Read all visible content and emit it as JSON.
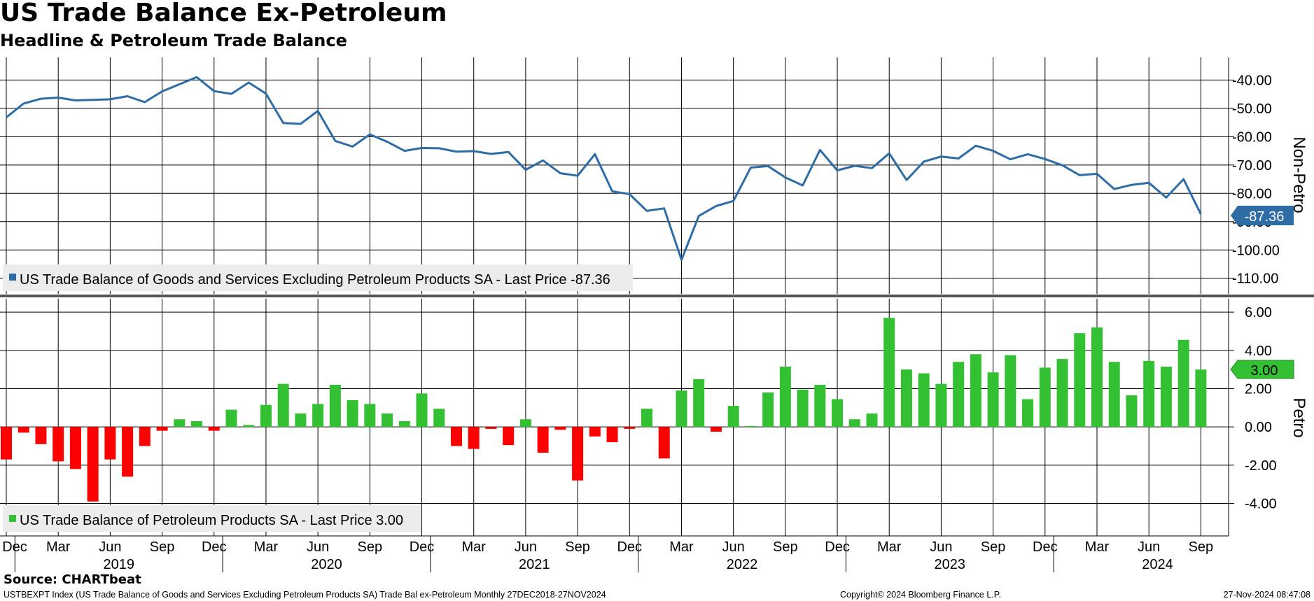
{
  "title": "US Trade Balance Ex-Petroleum",
  "subtitle": "Headline & Petroleum Trade Balance",
  "source": "Source: CHARTbeat",
  "footer": {
    "description": "USTBEXPT Index (US Trade Balance of Goods and Services Excluding Petroleum Products SA) Trade Bal ex-Petroleum  Monthly 27DEC2018-27NOV2024",
    "copyright": "Copyright© 2024 Bloomberg Finance L.P.",
    "timestamp": "27-Nov-2024 08:47:08"
  },
  "colors": {
    "line": "#2e6ca6",
    "bar_positive": "#33c033",
    "bar_negative": "#ff0000",
    "grid": "#000000",
    "divider": "#555555"
  },
  "chart_data": [
    {
      "type": "line",
      "axis_label": "Non-Petro",
      "legend": "US Trade Balance of Goods and Services Excluding Petroleum Products SA - Last Price -87.36",
      "last_value_label": "-87.36",
      "ylim": [
        -115.5,
        -32
      ],
      "y_ticks": [
        -40,
        -50,
        -60,
        -70,
        -80,
        -90,
        -100,
        -110
      ],
      "y_tick_labels": [
        "-40.00",
        "-50.00",
        "-60.00",
        "-70.00",
        "-80.00",
        "-90.00",
        "-100.00",
        "-110.00"
      ],
      "series": [
        {
          "name": "US Trade Balance of Goods and Services Excluding Petroleum Products SA",
          "values": [
            -53.2,
            -48.3,
            -46.6,
            -46.2,
            -47.2,
            -47.0,
            -46.8,
            -45.7,
            -47.8,
            -44.0,
            -41.5,
            -39.0,
            -43.9,
            -44.9,
            -40.9,
            -44.8,
            -55.2,
            -55.5,
            -50.9,
            -61.5,
            -63.5,
            -59.2,
            -61.8,
            -65.0,
            -64.0,
            -64.1,
            -65.3,
            -65.1,
            -66.1,
            -65.4,
            -71.7,
            -68.4,
            -72.9,
            -73.8,
            -66.2,
            -79.3,
            -80.3,
            -86.2,
            -85.3,
            -103.5,
            -88.0,
            -84.5,
            -82.7,
            -70.9,
            -70.4,
            -74.4,
            -77.2,
            -64.7,
            -71.9,
            -70.3,
            -71.1,
            -65.9,
            -75.3,
            -68.8,
            -67.0,
            -67.7,
            -63.2,
            -65.0,
            -68.0,
            -66.2,
            -67.9,
            -70.1,
            -73.6,
            -73.1,
            -78.5,
            -77.0,
            -76.3,
            -81.5,
            -75.0,
            -87.36
          ]
        }
      ]
    },
    {
      "type": "bar",
      "axis_label": "Petro",
      "legend": "US Trade Balance of Petroleum Products SA - Last Price 3.00",
      "last_value_label": "3.00",
      "ylim": [
        -5.7,
        6.7
      ],
      "y_ticks": [
        6,
        4,
        2,
        0,
        -2,
        -4
      ],
      "y_tick_labels": [
        "6.00",
        "4.00",
        "2.00",
        "0.00",
        "-2.00",
        "-4.00"
      ],
      "series": [
        {
          "name": "US Trade Balance of Petroleum Products SA",
          "values": [
            -1.7,
            -0.3,
            -0.9,
            -1.8,
            -2.2,
            -3.9,
            -1.7,
            -2.6,
            -1.0,
            -0.2,
            0.4,
            0.3,
            -0.2,
            0.9,
            0.1,
            1.15,
            2.25,
            0.7,
            1.2,
            2.2,
            1.4,
            1.2,
            0.7,
            0.3,
            1.75,
            0.95,
            -1.0,
            -1.15,
            -0.1,
            -0.95,
            0.4,
            -1.35,
            -0.15,
            -2.8,
            -0.5,
            -0.8,
            -0.1,
            0.95,
            -1.65,
            1.9,
            2.5,
            -0.25,
            1.1,
            0.05,
            1.8,
            3.15,
            1.95,
            2.2,
            1.45,
            0.4,
            0.7,
            5.7,
            3.0,
            2.8,
            2.25,
            3.4,
            3.8,
            2.85,
            3.75,
            1.45,
            3.1,
            3.55,
            4.9,
            5.2,
            3.4,
            1.65,
            3.45,
            3.15,
            4.55,
            3.0
          ]
        }
      ]
    }
  ],
  "x_axis": {
    "start": "Dec 2018",
    "month_labels": [
      "Dec",
      "Mar",
      "Jun",
      "Sep",
      "Dec",
      "Mar",
      "Jun",
      "Sep",
      "Dec",
      "Mar",
      "Jun",
      "Sep",
      "Dec",
      "Mar",
      "Jun",
      "Sep",
      "Dec",
      "Mar",
      "Jun",
      "Sep",
      "Dec",
      "Mar",
      "Jun",
      "Sep"
    ],
    "year_labels": [
      "2019",
      "2020",
      "2021",
      "2022",
      "2023",
      "2024"
    ]
  }
}
